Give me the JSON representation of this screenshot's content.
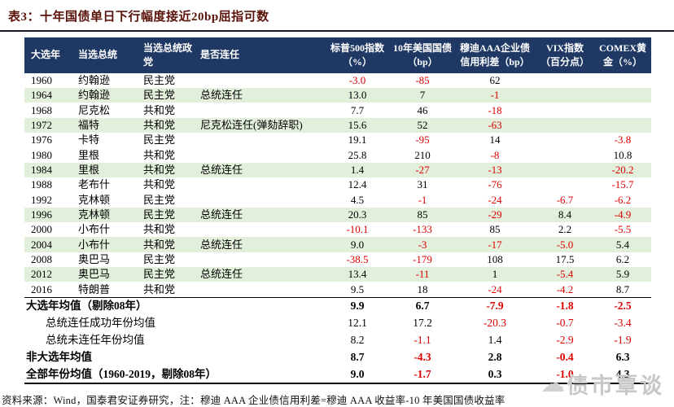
{
  "title": "表3：十年国债单日下行幅度接近20bp屈指可数",
  "source_note": "资料来源：Wind，国泰君安证券研究，注：穆迪 AAA 企业债信用利差=穆迪 AAA 收益率-10 年美国国债收益率",
  "watermark": {
    "icon": "cloud-icon",
    "text": "债市覃谈"
  },
  "colors": {
    "header_bg": "#1f3864",
    "header_text": "#ffffff",
    "stripe_green": "#e2efda",
    "negative_red": "#dd0000",
    "title_maroon": "#5a120a",
    "watermark_gray": "#c7c7c7"
  },
  "chart_data": {
    "type": "table",
    "title": "表3：十年国债单日下行幅度接近20bp屈指可数",
    "headers": [
      "大选年",
      "当选总统",
      "当选总统政党",
      "是否连任",
      "标普500指数（%）",
      "10年美国国债（bp）",
      "穆迪AAA企业债信用利差（bp）",
      "VIX指数（百分点）",
      "COMEX黄金（%）"
    ]
  },
  "table": {
    "headers": [
      {
        "label": "大选年",
        "kind": "txt"
      },
      {
        "label": "当选总统",
        "kind": "txt"
      },
      {
        "label": "当选总统政党",
        "kind": "txt"
      },
      {
        "label": "是否连任",
        "kind": "txt"
      },
      {
        "label": "标普500指数（%）",
        "kind": "num"
      },
      {
        "label": "10年美国国债（bp）",
        "kind": "num"
      },
      {
        "label": "穆迪AAA企业债信用利差（bp）",
        "kind": "num"
      },
      {
        "label": "VIX指数（百分点）",
        "kind": "num"
      },
      {
        "label": "COMEX黄金（%）",
        "kind": "num"
      }
    ],
    "rows": [
      {
        "year": "1960",
        "president": "约翰逊",
        "party": "民主党",
        "reelect": "",
        "sp500": "-3.0",
        "ust10": "-85",
        "aaa": "62",
        "vix": "",
        "gold": "",
        "highlight": false
      },
      {
        "year": "1964",
        "president": "约翰逊",
        "party": "民主党",
        "reelect": "总统连任",
        "sp500": "13.0",
        "ust10": "7",
        "aaa": "-1",
        "vix": "",
        "gold": "",
        "highlight": true
      },
      {
        "year": "1968",
        "president": "尼克松",
        "party": "共和党",
        "reelect": "",
        "sp500": "7.7",
        "ust10": "46",
        "aaa": "-18",
        "vix": "",
        "gold": "",
        "highlight": false
      },
      {
        "year": "1972",
        "president": "福特",
        "party": "共和党",
        "reelect": "尼克松连任(弹劾辞职)",
        "sp500": "15.6",
        "ust10": "52",
        "aaa": "-63",
        "vix": "",
        "gold": "",
        "highlight": true
      },
      {
        "year": "1976",
        "president": "卡特",
        "party": "民主党",
        "reelect": "",
        "sp500": "19.1",
        "ust10": "-95",
        "aaa": "14",
        "vix": "",
        "gold": "-3.8",
        "highlight": false
      },
      {
        "year": "1980",
        "president": "里根",
        "party": "共和党",
        "reelect": "",
        "sp500": "25.8",
        "ust10": "210",
        "aaa": "-8",
        "vix": "",
        "gold": "10.8",
        "highlight": false
      },
      {
        "year": "1984",
        "president": "里根",
        "party": "共和党",
        "reelect": "总统连任",
        "sp500": "1.4",
        "ust10": "-27",
        "aaa": "-13",
        "vix": "",
        "gold": "-20.2",
        "highlight": true
      },
      {
        "year": "1988",
        "president": "老布什",
        "party": "共和党",
        "reelect": "",
        "sp500": "12.4",
        "ust10": "31",
        "aaa": "-76",
        "vix": "",
        "gold": "-15.7",
        "highlight": false
      },
      {
        "year": "1992",
        "president": "克林顿",
        "party": "民主党",
        "reelect": "",
        "sp500": "4.5",
        "ust10": "-1",
        "aaa": "-24",
        "vix": "-6.7",
        "gold": "-6.2",
        "highlight": false
      },
      {
        "year": "1996",
        "president": "克林顿",
        "party": "民主党",
        "reelect": "总统连任",
        "sp500": "20.3",
        "ust10": "85",
        "aaa": "-29",
        "vix": "8.4",
        "gold": "-4.9",
        "highlight": true
      },
      {
        "year": "2000",
        "president": "小布什",
        "party": "共和党",
        "reelect": "",
        "sp500": "-10.1",
        "ust10": "-133",
        "aaa": "85",
        "vix": "2.2",
        "gold": "-5.5",
        "highlight": false
      },
      {
        "year": "2004",
        "president": "小布什",
        "party": "共和党",
        "reelect": "总统连任",
        "sp500": "9.0",
        "ust10": "-3",
        "aaa": "-17",
        "vix": "-5.0",
        "gold": "5.4",
        "highlight": true
      },
      {
        "year": "2008",
        "president": "奥巴马",
        "party": "民主党",
        "reelect": "",
        "sp500": "-38.5",
        "ust10": "-179",
        "aaa": "108",
        "vix": "17.5",
        "gold": "6.2",
        "highlight": false
      },
      {
        "year": "2012",
        "president": "奥巴马",
        "party": "民主党",
        "reelect": "总统连任",
        "sp500": "13.4",
        "ust10": "-11",
        "aaa": "1",
        "vix": "-5.4",
        "gold": "5.9",
        "highlight": true
      },
      {
        "year": "2016",
        "president": "特朗普",
        "party": "共和党",
        "reelect": "",
        "sp500": "9.5",
        "ust10": "18",
        "aaa": "-24",
        "vix": "-4.2",
        "gold": "8.7",
        "highlight": false
      }
    ],
    "summary": [
      {
        "label": "大选年均值（剔除08年）",
        "sp500": "9.9",
        "ust10": "6.7",
        "aaa": "-7.9",
        "vix": "-1.8",
        "gold": "-2.5",
        "bold": true,
        "indent": false
      },
      {
        "label": "总统连任成功年份均值",
        "sp500": "12.1",
        "ust10": "17.2",
        "aaa": "-20.3",
        "vix": "-0.7",
        "gold": "-3.4",
        "bold": false,
        "indent": true
      },
      {
        "label": "总统未连任年份均值",
        "sp500": "8.2",
        "ust10": "-1.1",
        "aaa": "1.4",
        "vix": "-2.9",
        "gold": "-1.9",
        "bold": false,
        "indent": true
      },
      {
        "label": "非大选年均值",
        "sp500": "8.7",
        "ust10": "-4.3",
        "aaa": "2.8",
        "vix": "-0.4",
        "gold": "6.3",
        "bold": true,
        "indent": false
      },
      {
        "label": "全部年份均值（1960-2019，剔除08年）",
        "sp500": "9.0",
        "ust10": "-1.7",
        "aaa": "0.3",
        "vix": "-1.0",
        "gold": "4.3",
        "bold": true,
        "indent": false
      }
    ]
  }
}
